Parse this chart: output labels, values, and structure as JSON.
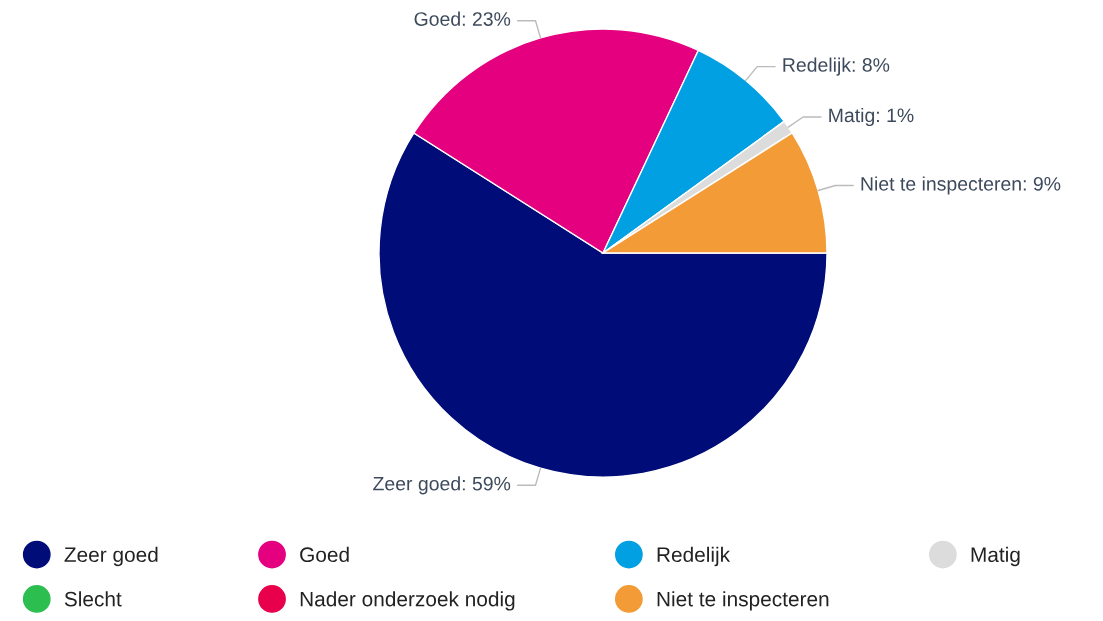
{
  "chart_data": {
    "type": "pie",
    "categories": [
      "Zeer goed",
      "Goed",
      "Redelijk",
      "Matig",
      "Slecht",
      "Nader onderzoek nodig",
      "Niet te inspecteren"
    ],
    "values": [
      59,
      23,
      8,
      1,
      0,
      0,
      9
    ],
    "colors": [
      "#000c78",
      "#e4007f",
      "#00a0e2",
      "#dcdcdc",
      "#2dbe50",
      "#e8004c",
      "#f29b37"
    ],
    "value_labels": [
      "Zeer goed: 59%",
      "Goed: 23%",
      "Redelijk: 8%",
      "Matig: 1%",
      null,
      null,
      "Niet te inspecteren: 9%"
    ],
    "legend": "bottom"
  }
}
